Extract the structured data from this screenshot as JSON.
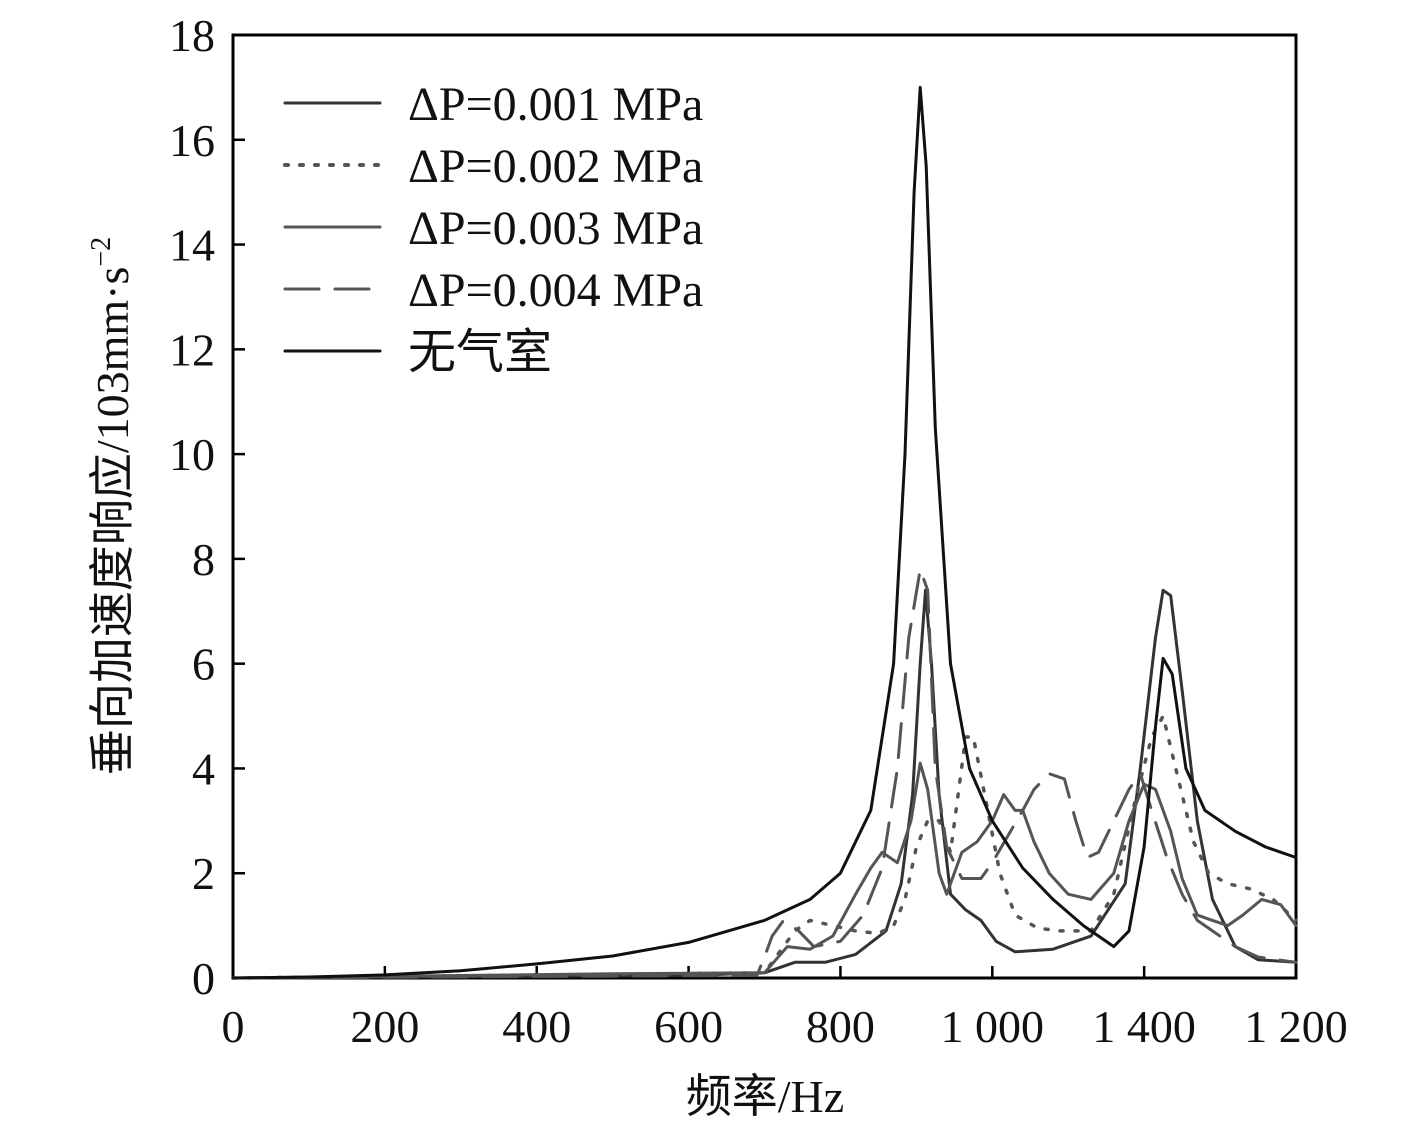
{
  "chart_data": {
    "type": "line",
    "title": "",
    "xlabel": "频率/Hz",
    "ylabel": "垂向加速度响应/103mm·s",
    "ylabel_superscript": "−2",
    "x_tick_labels": [
      "0",
      "200",
      "400",
      "600",
      "800",
      "1 000",
      "1 400",
      "1 200"
    ],
    "y_tick_labels": [
      "0",
      "2",
      "4",
      "6",
      "8",
      "10",
      "12",
      "14",
      "16",
      "18"
    ],
    "xlim": [
      0,
      1400
    ],
    "ylim": [
      0,
      18
    ],
    "grid": false,
    "legend_position": "top-left",
    "series": [
      {
        "name": "ΔP=0.001 MPa",
        "color": "#333333",
        "dash": "solid",
        "points": [
          [
            0,
            0
          ],
          [
            600,
            0.05
          ],
          [
            700,
            0.1
          ],
          [
            740,
            0.3
          ],
          [
            780,
            0.3
          ],
          [
            820,
            0.45
          ],
          [
            860,
            0.9
          ],
          [
            880,
            1.8
          ],
          [
            895,
            3.5
          ],
          [
            905,
            6.0
          ],
          [
            912,
            7.4
          ],
          [
            920,
            6.0
          ],
          [
            930,
            3.5
          ],
          [
            945,
            1.6
          ],
          [
            965,
            1.3
          ],
          [
            985,
            1.1
          ],
          [
            1005,
            0.7
          ],
          [
            1030,
            0.5
          ],
          [
            1080,
            0.55
          ],
          [
            1130,
            0.8
          ],
          [
            1175,
            1.8
          ],
          [
            1195,
            4.0
          ],
          [
            1215,
            6.5
          ],
          [
            1225,
            7.4
          ],
          [
            1235,
            7.3
          ],
          [
            1250,
            5.5
          ],
          [
            1270,
            3.0
          ],
          [
            1290,
            1.5
          ],
          [
            1320,
            0.6
          ],
          [
            1350,
            0.35
          ],
          [
            1400,
            0.3
          ]
        ]
      },
      {
        "name": "ΔP=0.002 MPa",
        "color": "#555555",
        "dash": "dotted",
        "points": [
          [
            0,
            0
          ],
          [
            700,
            0.1
          ],
          [
            720,
            0.5
          ],
          [
            740,
            0.9
          ],
          [
            760,
            1.1
          ],
          [
            790,
            1.0
          ],
          [
            820,
            0.9
          ],
          [
            850,
            0.85
          ],
          [
            870,
            1.0
          ],
          [
            885,
            1.5
          ],
          [
            900,
            2.5
          ],
          [
            915,
            3.0
          ],
          [
            930,
            3.0
          ],
          [
            945,
            2.4
          ],
          [
            965,
            4.6
          ],
          [
            975,
            4.6
          ],
          [
            990,
            3.5
          ],
          [
            1010,
            2.0
          ],
          [
            1030,
            1.2
          ],
          [
            1060,
            0.95
          ],
          [
            1090,
            0.9
          ],
          [
            1130,
            0.9
          ],
          [
            1160,
            1.6
          ],
          [
            1190,
            3.5
          ],
          [
            1210,
            4.6
          ],
          [
            1225,
            5.0
          ],
          [
            1245,
            3.8
          ],
          [
            1265,
            2.6
          ],
          [
            1285,
            2.0
          ],
          [
            1310,
            1.8
          ],
          [
            1340,
            1.7
          ],
          [
            1370,
            1.5
          ],
          [
            1400,
            1.1
          ]
        ]
      },
      {
        "name": "ΔP=0.003 MPa",
        "color": "#555555",
        "dash": "solid",
        "points": [
          [
            0,
            0
          ],
          [
            500,
            0.08
          ],
          [
            700,
            0.1
          ],
          [
            730,
            0.6
          ],
          [
            760,
            0.55
          ],
          [
            790,
            0.8
          ],
          [
            820,
            1.6
          ],
          [
            840,
            2.1
          ],
          [
            855,
            2.4
          ],
          [
            875,
            2.2
          ],
          [
            893,
            3.0
          ],
          [
            905,
            4.1
          ],
          [
            915,
            3.6
          ],
          [
            930,
            2.0
          ],
          [
            940,
            1.6
          ],
          [
            960,
            2.4
          ],
          [
            980,
            2.6
          ],
          [
            1000,
            3.0
          ],
          [
            1015,
            3.5
          ],
          [
            1030,
            3.2
          ],
          [
            1040,
            3.2
          ],
          [
            1055,
            2.6
          ],
          [
            1075,
            2.0
          ],
          [
            1100,
            1.6
          ],
          [
            1130,
            1.5
          ],
          [
            1160,
            2.0
          ],
          [
            1180,
            3.0
          ],
          [
            1200,
            3.7
          ],
          [
            1215,
            3.6
          ],
          [
            1235,
            2.8
          ],
          [
            1250,
            1.9
          ],
          [
            1270,
            1.2
          ],
          [
            1290,
            1.1
          ],
          [
            1310,
            1.0
          ],
          [
            1330,
            1.2
          ],
          [
            1355,
            1.5
          ],
          [
            1380,
            1.4
          ],
          [
            1400,
            1.0
          ]
        ]
      },
      {
        "name": "ΔP=0.004 MPa",
        "color": "#555555",
        "dash": "dashed",
        "points": [
          [
            0,
            0
          ],
          [
            690,
            0.05
          ],
          [
            700,
            0.4
          ],
          [
            710,
            0.8
          ],
          [
            725,
            1.1
          ],
          [
            745,
            0.9
          ],
          [
            765,
            0.6
          ],
          [
            800,
            0.7
          ],
          [
            830,
            1.2
          ],
          [
            855,
            2.1
          ],
          [
            875,
            4.0
          ],
          [
            890,
            6.5
          ],
          [
            905,
            7.8
          ],
          [
            915,
            7.4
          ],
          [
            925,
            4.0
          ],
          [
            940,
            2.5
          ],
          [
            960,
            1.9
          ],
          [
            985,
            1.9
          ],
          [
            1000,
            2.2
          ],
          [
            1020,
            2.7
          ],
          [
            1040,
            3.2
          ],
          [
            1055,
            3.6
          ],
          [
            1075,
            3.9
          ],
          [
            1095,
            3.8
          ],
          [
            1110,
            3.0
          ],
          [
            1125,
            2.3
          ],
          [
            1140,
            2.4
          ],
          [
            1160,
            3.0
          ],
          [
            1180,
            3.6
          ],
          [
            1195,
            3.9
          ],
          [
            1210,
            3.2
          ],
          [
            1230,
            2.3
          ],
          [
            1250,
            1.6
          ],
          [
            1270,
            1.1
          ],
          [
            1290,
            0.9
          ],
          [
            1320,
            0.6
          ],
          [
            1350,
            0.4
          ],
          [
            1400,
            0.3
          ]
        ]
      },
      {
        "name": "无气室",
        "color": "#111111",
        "dash": "solid",
        "points": [
          [
            0,
            0
          ],
          [
            100,
            0.02
          ],
          [
            200,
            0.06
          ],
          [
            300,
            0.14
          ],
          [
            400,
            0.27
          ],
          [
            500,
            0.42
          ],
          [
            600,
            0.68
          ],
          [
            700,
            1.1
          ],
          [
            760,
            1.5
          ],
          [
            800,
            2.0
          ],
          [
            840,
            3.2
          ],
          [
            870,
            6.0
          ],
          [
            885,
            10.0
          ],
          [
            897,
            15.0
          ],
          [
            905,
            17.0
          ],
          [
            913,
            15.5
          ],
          [
            925,
            10.5
          ],
          [
            945,
            6.0
          ],
          [
            970,
            4.0
          ],
          [
            1000,
            3.0
          ],
          [
            1040,
            2.1
          ],
          [
            1080,
            1.5
          ],
          [
            1120,
            1.0
          ],
          [
            1160,
            0.6
          ],
          [
            1180,
            0.9
          ],
          [
            1200,
            2.5
          ],
          [
            1215,
            4.8
          ],
          [
            1225,
            6.1
          ],
          [
            1237,
            5.8
          ],
          [
            1255,
            4.0
          ],
          [
            1280,
            3.2
          ],
          [
            1320,
            2.8
          ],
          [
            1360,
            2.5
          ],
          [
            1400,
            2.3
          ]
        ]
      }
    ]
  }
}
